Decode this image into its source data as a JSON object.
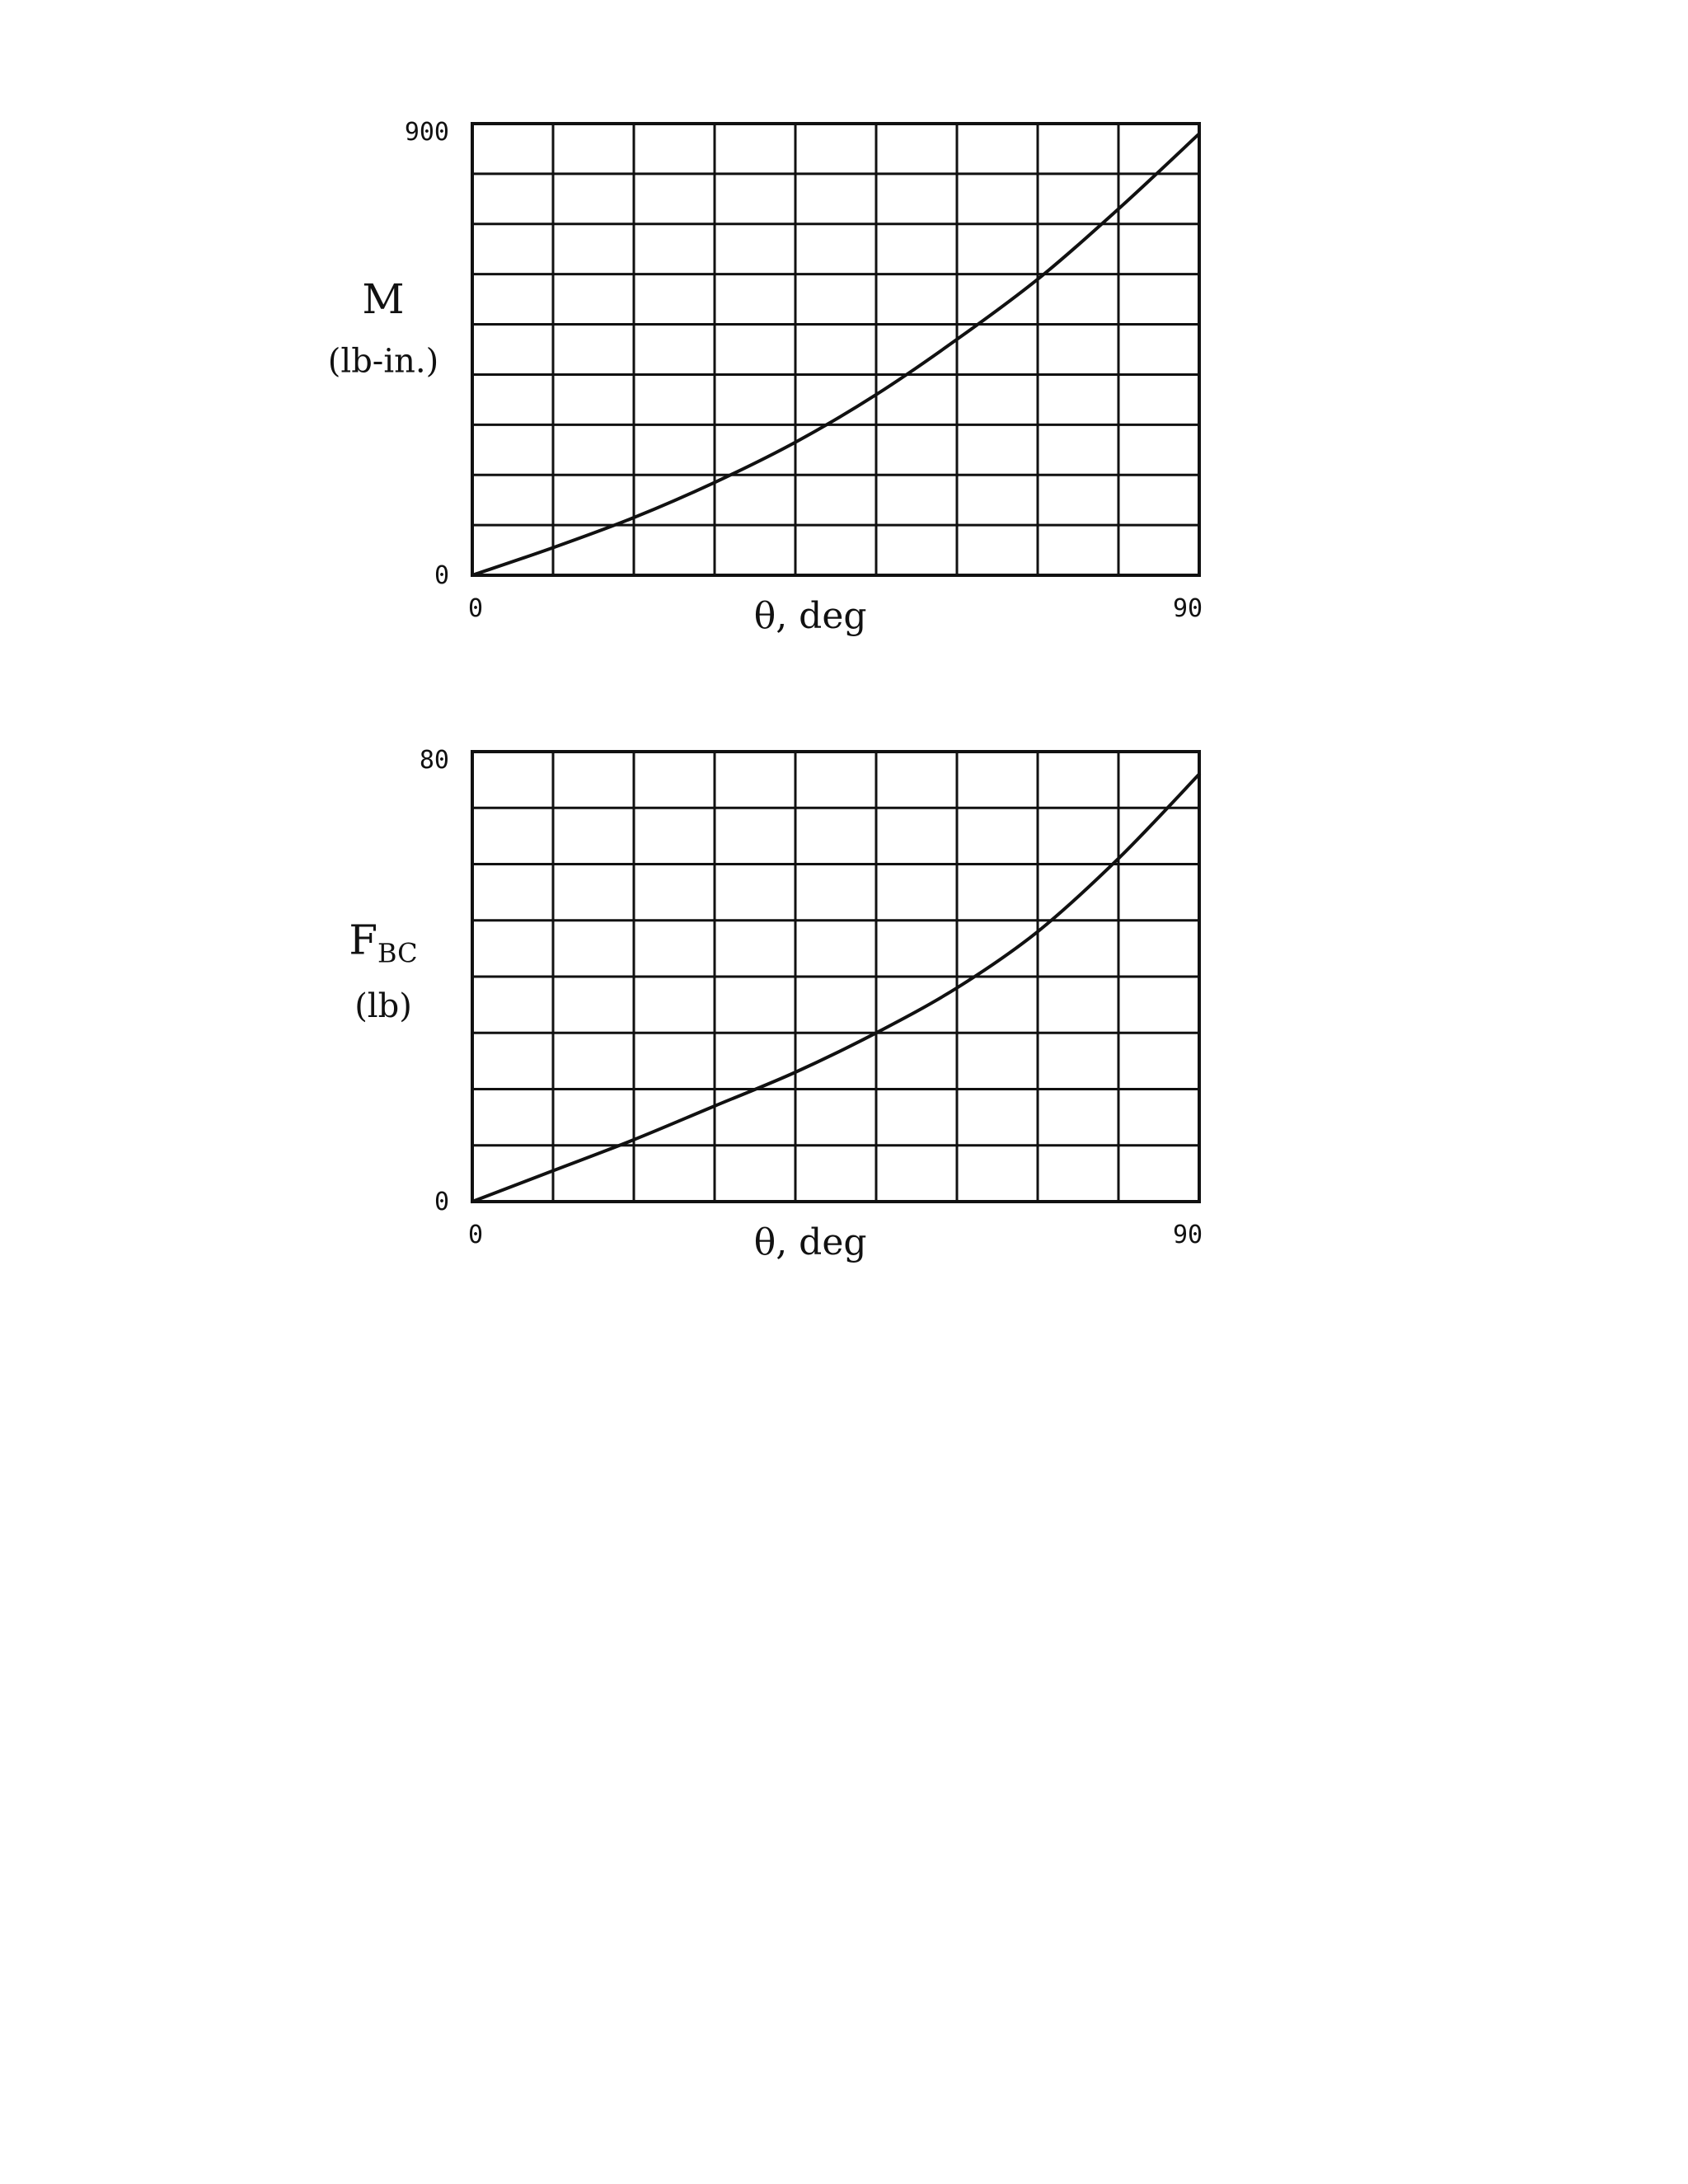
{
  "chart_data": [
    {
      "type": "line",
      "xlabel": "θ, deg",
      "ylabel": "M",
      "ylabel_unit": "(lb-in.)",
      "xlim": [
        0,
        90
      ],
      "ylim": [
        0,
        900
      ],
      "x_ticks": [
        "0",
        "90"
      ],
      "y_ticks": [
        "0",
        "900"
      ],
      "grid": true,
      "x_divisions": 9,
      "y_divisions": 9,
      "series": [
        {
          "x": [
            0,
            10,
            20,
            30,
            40,
            50,
            60,
            70,
            80,
            90
          ],
          "values": [
            0,
            55,
            115,
            185,
            265,
            360,
            470,
            590,
            730,
            880
          ]
        }
      ]
    },
    {
      "type": "line",
      "xlabel": "θ, deg",
      "ylabel": "F",
      "ylabel_sub": "BC",
      "ylabel_unit": "(lb)",
      "xlim": [
        0,
        90
      ],
      "ylim": [
        0,
        80
      ],
      "x_ticks": [
        "0",
        "90"
      ],
      "y_ticks": [
        "0",
        "80"
      ],
      "grid": true,
      "x_divisions": 9,
      "y_divisions": 8,
      "series": [
        {
          "x": [
            0,
            10,
            20,
            30,
            40,
            50,
            60,
            70,
            80,
            90
          ],
          "values": [
            0,
            5.5,
            11,
            17,
            23,
            30,
            38,
            48,
            61,
            76
          ]
        }
      ]
    }
  ]
}
